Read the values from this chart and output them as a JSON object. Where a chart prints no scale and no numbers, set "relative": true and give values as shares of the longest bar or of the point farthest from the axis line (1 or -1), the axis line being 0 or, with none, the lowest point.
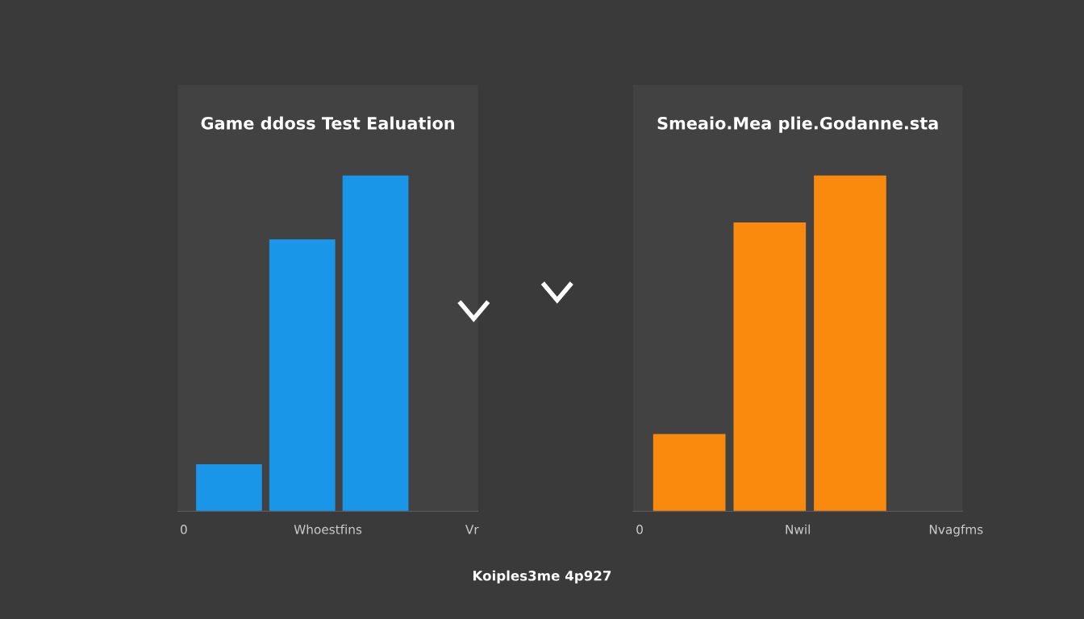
{
  "chart_data": [
    {
      "type": "bar",
      "title": "Game ddoss Test Ealuation",
      "relative": true,
      "categories": [
        null,
        null,
        null
      ],
      "values": [
        0.14,
        0.81,
        1
      ],
      "color": "#1a96e8",
      "annotations": [
        "0",
        "Whoestfins",
        "Vr"
      ]
    },
    {
      "type": "bar",
      "title": "Smeaio.Mea plie.Godanne.sta",
      "relative": true,
      "categories": [
        null,
        null,
        null
      ],
      "values": [
        0.23,
        0.86,
        1
      ],
      "color": "#f98a0e",
      "annotations": [
        "0",
        "Nwil",
        "Nvagfms"
      ]
    },
    {
      "type": "other",
      "annotations": [
        "Koiples3me 4p927"
      ]
    }
  ]
}
